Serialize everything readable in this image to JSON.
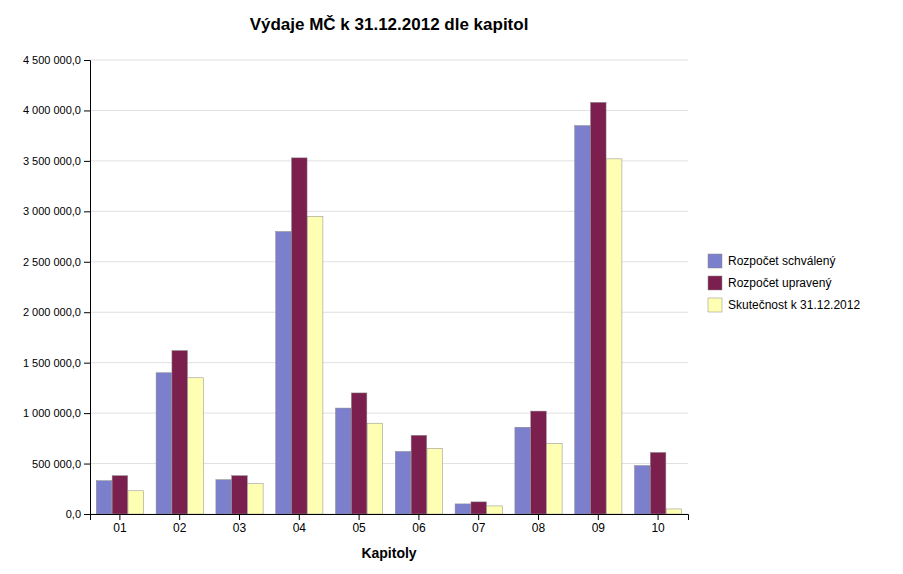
{
  "chart_data": {
    "type": "bar",
    "title": "Výdaje MČ k 31.12.2012 dle kapitol",
    "categories": [
      "01",
      "02",
      "03",
      "04",
      "05",
      "06",
      "07",
      "08",
      "09",
      "10"
    ],
    "series": [
      {
        "name": "Rozpočet schválený",
        "color": "#7B7FCC",
        "values": [
          330000,
          1400000,
          340000,
          2800000,
          1050000,
          620000,
          100000,
          860000,
          3850000,
          480000
        ]
      },
      {
        "name": "Rozpočet upravený",
        "color": "#7B1F4E",
        "values": [
          380000,
          1620000,
          380000,
          3530000,
          1200000,
          780000,
          120000,
          1020000,
          4080000,
          610000
        ]
      },
      {
        "name": "Skutečnost k 31.12.2012",
        "color": "#FFFFB3",
        "values": [
          230000,
          1350000,
          300000,
          2950000,
          900000,
          650000,
          80000,
          700000,
          3520000,
          50000
        ]
      }
    ],
    "xlabel": "Kapitoly",
    "ylim": [
      0,
      4500000
    ],
    "yticks": [
      {
        "value": 0,
        "label": "0,0"
      },
      {
        "value": 500000,
        "label": "500 000,0"
      },
      {
        "value": 1000000,
        "label": "1 000 000,0"
      },
      {
        "value": 1500000,
        "label": "1 500 000,0"
      },
      {
        "value": 2000000,
        "label": "2 000 000,0"
      },
      {
        "value": 2500000,
        "label": "2 500 000,0"
      },
      {
        "value": 3000000,
        "label": "3 000 000,0"
      },
      {
        "value": 3500000,
        "label": "3 500 000,0"
      },
      {
        "value": 4000000,
        "label": "4 000 000,0"
      },
      {
        "value": 4500000,
        "label": "4 500 000,0"
      }
    ],
    "grid": true,
    "legend": "right"
  }
}
